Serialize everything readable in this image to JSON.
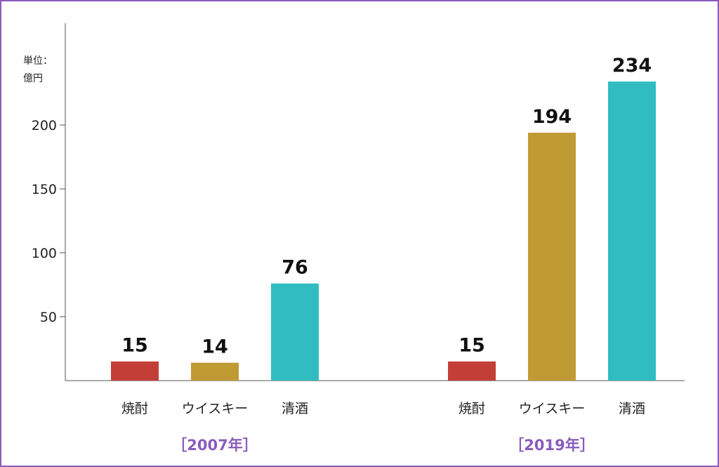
{
  "chart_data": {
    "type": "bar",
    "unit_label": [
      "単位：",
      "億円"
    ],
    "y_ticks": [
      50,
      100,
      150,
      200
    ],
    "ylim": [
      0,
      280
    ],
    "categories": [
      "焼酎",
      "ウイスキー",
      "清酒"
    ],
    "groups": [
      {
        "label": "［2007年］",
        "values": [
          15,
          14,
          76
        ]
      },
      {
        "label": "［2019年］",
        "values": [
          15,
          194,
          234
        ]
      }
    ],
    "colors": [
      "#c23f38",
      "#c09a33",
      "#31bcc2"
    ],
    "group_label_color": "#8a5bbd",
    "grid": false,
    "legend": "none"
  }
}
